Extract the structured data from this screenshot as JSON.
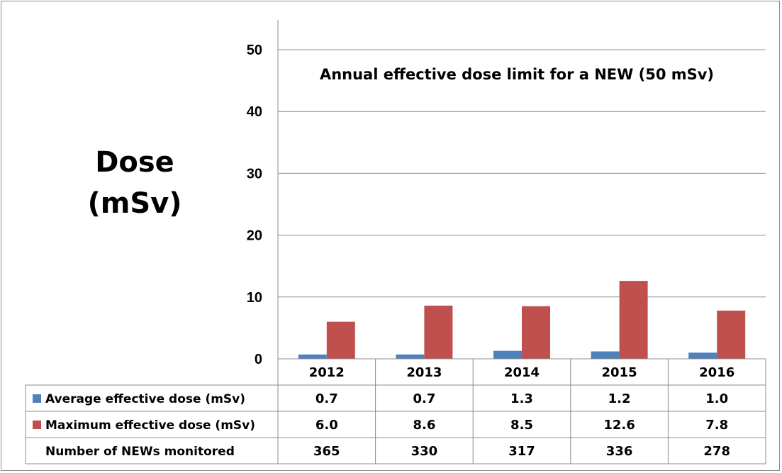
{
  "chart_data": {
    "type": "bar",
    "categories": [
      "2012",
      "2013",
      "2014",
      "2015",
      "2016"
    ],
    "series": [
      {
        "name": "Average effective dose (mSv)",
        "color": "#4f81bd",
        "values": [
          0.7,
          0.7,
          1.3,
          1.2,
          1.0
        ],
        "labels": [
          "0.7",
          "0.7",
          "1.3",
          "1.2",
          "1.0"
        ]
      },
      {
        "name": "Maximum effective dose (mSv)",
        "color": "#c0504d",
        "values": [
          6.0,
          8.6,
          8.5,
          12.6,
          7.8
        ],
        "labels": [
          "6.0",
          "8.6",
          "8.5",
          "12.6",
          "7.8"
        ]
      }
    ],
    "extra_rows": [
      {
        "name": "Number of NEWs monitored",
        "values": [
          "365",
          "330",
          "317",
          "336",
          "278"
        ]
      }
    ],
    "ylabel_line1": "Dose",
    "ylabel_line2": "(mSv)",
    "annotation": "Annual effective dose limit for a NEW  (50 mSv)",
    "ylim": [
      0,
      55
    ],
    "yticks": [
      0,
      10,
      20,
      30,
      40,
      50
    ],
    "grid": true,
    "legend": "data-table"
  }
}
